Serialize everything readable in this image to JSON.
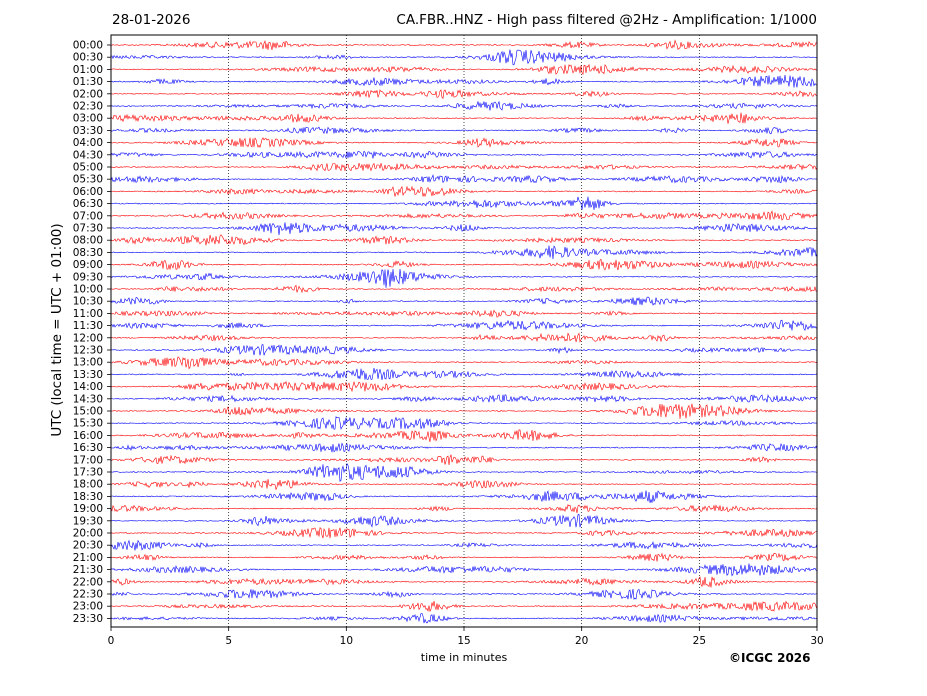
{
  "header": {
    "date": "28-01-2026",
    "title": "CA.FBR..HNZ - High pass filtered @2Hz - Amplification: 1/1000"
  },
  "footer": {
    "copyright": "©ICGC 2026"
  },
  "chart_data": {
    "type": "line",
    "xlabel": "time in minutes",
    "ylabel": "UTC (local time = UTC + 01:00)",
    "xlim": [
      0,
      30
    ],
    "x_ticks": [
      "0",
      "5",
      "10",
      "15",
      "20",
      "25",
      "30"
    ],
    "vertical_gridlines_minutes": [
      5,
      10,
      15,
      20,
      25
    ],
    "row_labels": [
      "00:00",
      "00:30",
      "01:00",
      "01:30",
      "02:00",
      "02:30",
      "03:00",
      "03:30",
      "04:00",
      "04:30",
      "05:00",
      "05:30",
      "06:00",
      "06:30",
      "07:00",
      "07:30",
      "08:00",
      "08:30",
      "09:00",
      "09:30",
      "10:00",
      "10:30",
      "11:00",
      "11:30",
      "12:00",
      "12:30",
      "13:00",
      "13:30",
      "14:00",
      "14:30",
      "15:00",
      "15:30",
      "16:00",
      "16:30",
      "17:00",
      "17:30",
      "18:00",
      "18:30",
      "19:00",
      "19:30",
      "20:00",
      "20:30",
      "21:00",
      "21:30",
      "22:00",
      "22:30",
      "23:00",
      "23:30"
    ],
    "colors": {
      "even_hour": "#ff0000",
      "half_hour": "#0000ff",
      "grid": "#000000"
    }
  }
}
